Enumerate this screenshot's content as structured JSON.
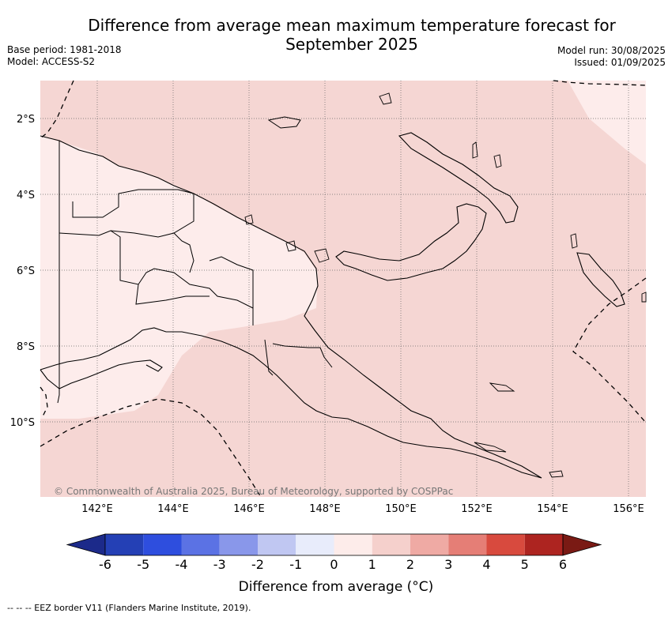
{
  "title": "Difference from average mean maximum temperature forecast for September 2025",
  "meta": {
    "base_period": "Base period: 1981-2018",
    "model": "Model: ACCESS-S2",
    "model_run": "Model run: 30/08/2025",
    "issued": "Issued: 01/09/2025"
  },
  "map": {
    "lat_labels": [
      "2°S",
      "4°S",
      "6°S",
      "8°S",
      "10°S"
    ],
    "lon_labels": [
      "142°E",
      "144°E",
      "146°E",
      "148°E",
      "150°E",
      "152°E",
      "154°E",
      "156°E"
    ],
    "copyright": "© Commonwealth of Australia 2025, Bureau of Meteorology, supported by COSPPac",
    "colors": {
      "ocean_fill": "#f5d6d3",
      "land_fill_light": "#fdeceb",
      "coast": "#000000"
    }
  },
  "colorbar": {
    "ticks": [
      "-6",
      "-5",
      "-4",
      "-3",
      "-2",
      "-1",
      "0",
      "1",
      "2",
      "3",
      "4",
      "5",
      "6"
    ],
    "colors": [
      "#1c2a8a",
      "#2440b5",
      "#2e4ede",
      "#5b72e4",
      "#8997ea",
      "#c0c7f2",
      "#e8ecfb",
      "#fdecea",
      "#f5d0cc",
      "#efaaa4",
      "#e57e76",
      "#d84a3e",
      "#ad2420",
      "#7a1a14"
    ],
    "label": "Difference from average (°C)"
  },
  "footnote": "-- -- -- EEZ border V11 (Flanders Marine Institute, 2019)."
}
